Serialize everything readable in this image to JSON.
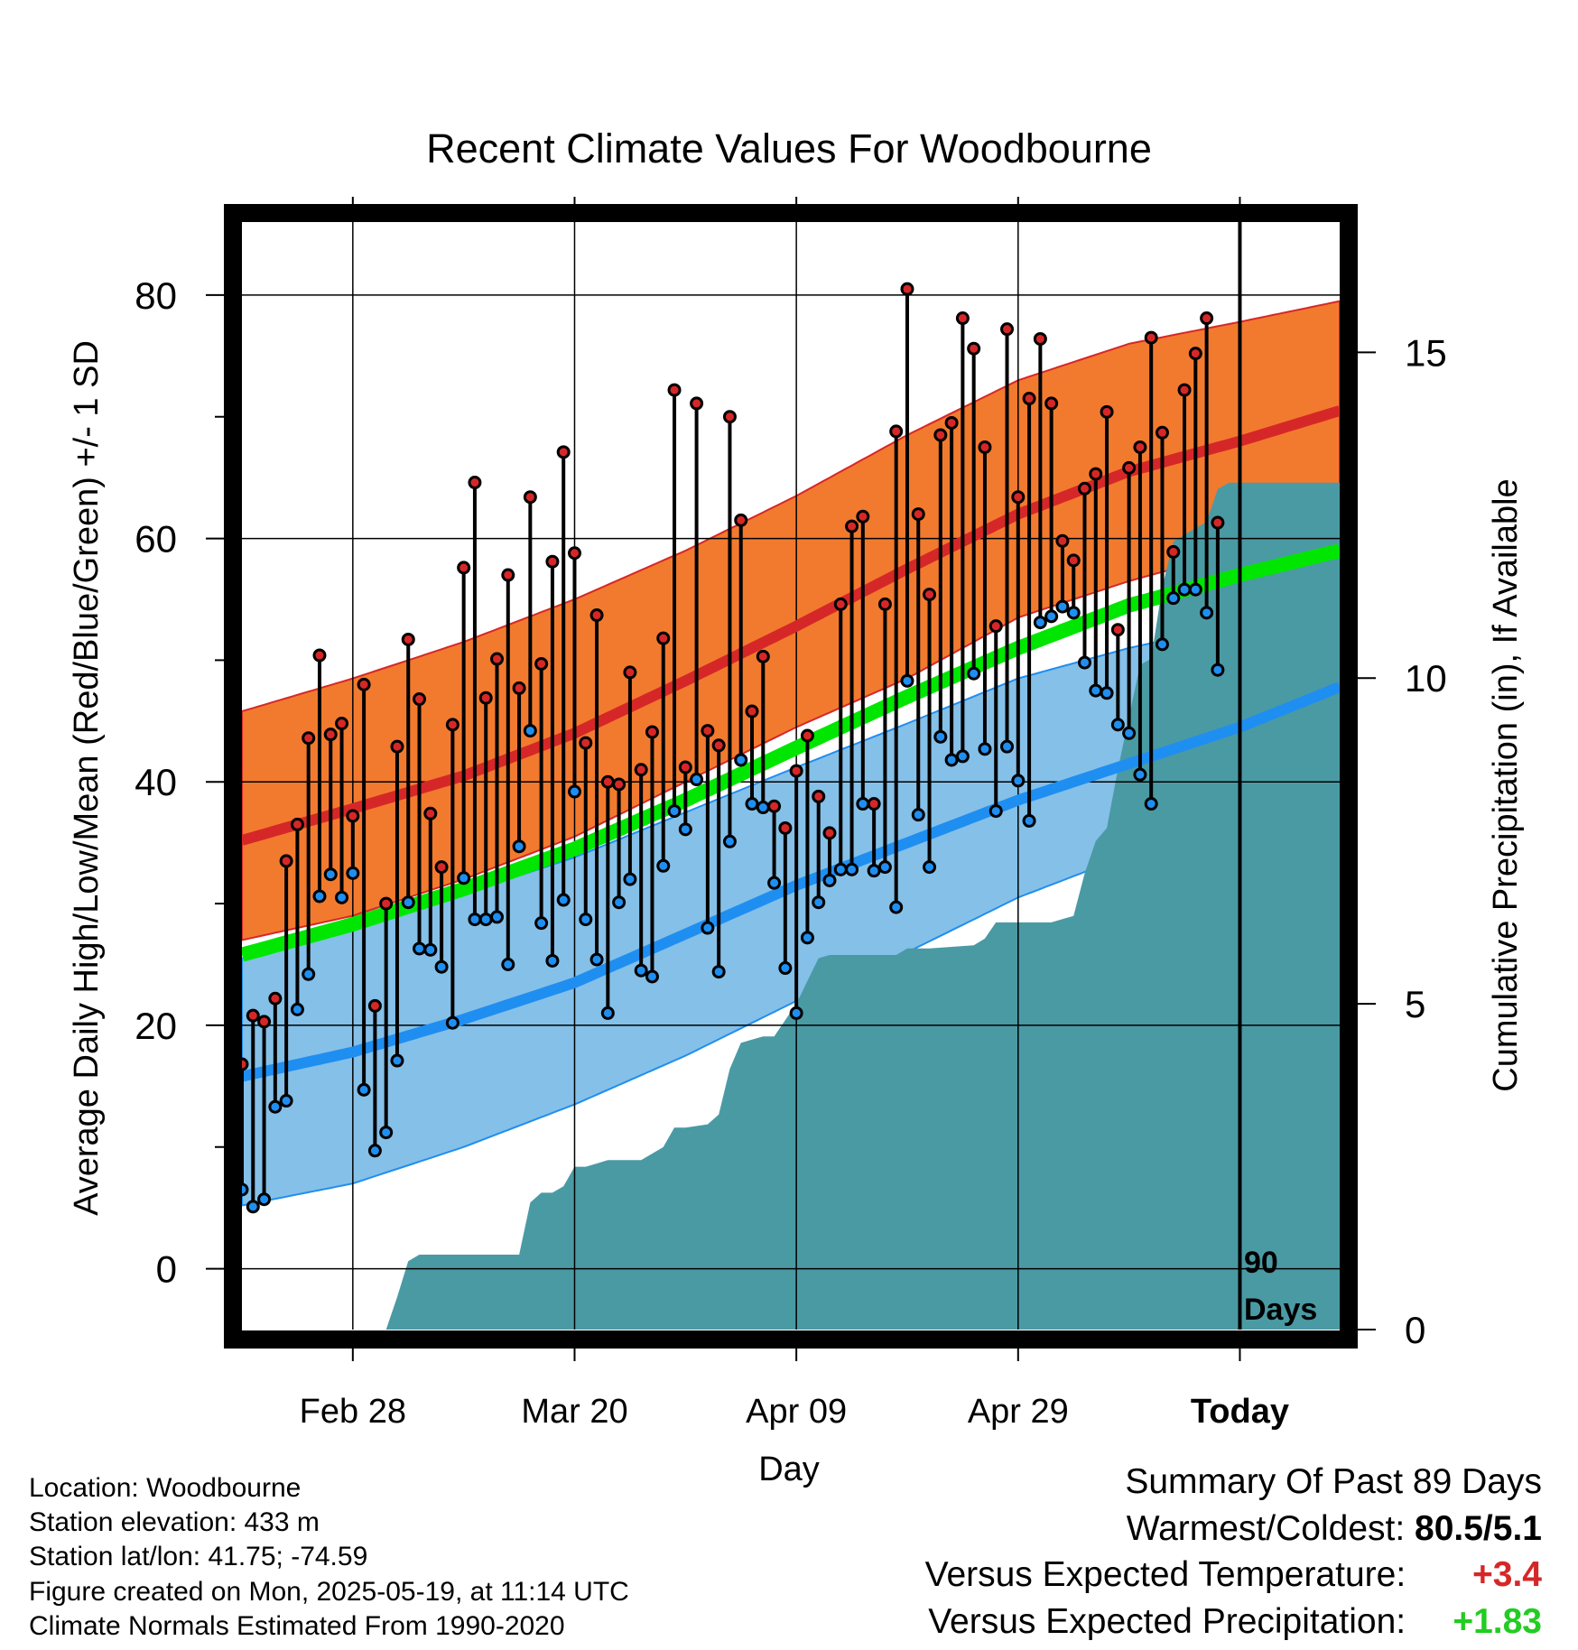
{
  "chart_data": {
    "type": "line",
    "title": "Recent Climate Values For Woodbourne",
    "xlabel": "Day",
    "ylabel": "Average Daily High/Low/Mean (Red/Blue/Green) +/- 1 SD",
    "y2label": "Cumulative Precipitation (in), If Available",
    "ylim": [
      -5,
      86
    ],
    "y2lim": [
      0,
      17
    ],
    "x_range_days": [
      0,
      99
    ],
    "today_index": 89,
    "today_marker_label_line1": "90",
    "today_marker_label_line2": "Days",
    "x_ticks": [
      {
        "day": 10,
        "label": "Feb 28"
      },
      {
        "day": 30,
        "label": "Mar 20"
      },
      {
        "day": 50,
        "label": "Apr 09"
      },
      {
        "day": 70,
        "label": "Apr 29"
      },
      {
        "day": 90,
        "label": "Today"
      }
    ],
    "y_ticks": [
      0,
      20,
      40,
      60,
      80
    ],
    "y_minor_ticks": [
      10,
      30,
      50,
      70
    ],
    "y2_ticks": [
      0,
      5,
      10,
      15
    ],
    "normal_days": [
      0,
      10,
      20,
      30,
      40,
      50,
      60,
      70,
      80,
      90,
      99
    ],
    "normal_high": [
      35.2,
      37.8,
      40.5,
      44.0,
      48.3,
      52.8,
      57.5,
      62.0,
      65.5,
      68.0,
      70.5
    ],
    "normal_high_upper": [
      45.8,
      48.5,
      51.5,
      55.0,
      59.0,
      63.5,
      68.5,
      73.0,
      76.0,
      77.8,
      79.5
    ],
    "normal_high_lower": [
      27.0,
      29.0,
      32.0,
      35.5,
      40.0,
      44.5,
      48.5,
      53.5,
      56.5,
      59.0,
      62.0
    ],
    "normal_mean": [
      25.8,
      28.3,
      31.2,
      34.5,
      38.5,
      42.8,
      47.0,
      51.0,
      54.5,
      57.0,
      59.0
    ],
    "normal_low": [
      15.8,
      17.8,
      20.5,
      23.5,
      27.5,
      31.5,
      35.0,
      38.5,
      41.5,
      44.5,
      47.8
    ],
    "normal_low_upper": [
      25.5,
      28.0,
      30.8,
      33.8,
      37.5,
      41.2,
      44.8,
      48.5,
      51.0,
      53.0,
      55.0
    ],
    "normal_low_lower": [
      5.2,
      7.0,
      10.0,
      13.5,
      17.5,
      22.0,
      26.0,
      30.5,
      34.0,
      37.0,
      41.0
    ],
    "daily_high": [
      16.8,
      20.8,
      20.3,
      22.2,
      33.5,
      36.5,
      43.6,
      50.4,
      43.9,
      44.8,
      37.2,
      48.0,
      21.6,
      30.0,
      42.9,
      51.7,
      46.8,
      37.4,
      33.0,
      44.7,
      57.6,
      64.6,
      46.9,
      50.1,
      57.0,
      47.7,
      63.4,
      49.7,
      58.1,
      67.1,
      58.8,
      43.2,
      53.7,
      40.0,
      39.8,
      49.0,
      41.0,
      44.1,
      51.8,
      72.2,
      41.2,
      71.1,
      44.2,
      43.0,
      70.0,
      61.5,
      45.8,
      50.3,
      38.0,
      36.2,
      40.9,
      43.8,
      38.8,
      35.8,
      54.6,
      61.0,
      61.8,
      38.2,
      54.6,
      68.8,
      80.5,
      62.0,
      55.4,
      68.5,
      69.5,
      78.1,
      75.6,
      67.5,
      52.8,
      77.2,
      63.4,
      71.5,
      76.4,
      71.1,
      59.8,
      58.2,
      64.1,
      65.3,
      70.4,
      52.5,
      65.8,
      67.5,
      76.5,
      68.7,
      58.9,
      72.2,
      75.2,
      78.1,
      61.3
    ],
    "daily_low": [
      6.5,
      5.1,
      5.7,
      13.3,
      13.8,
      21.3,
      24.2,
      30.6,
      32.4,
      30.5,
      32.5,
      14.7,
      9.7,
      11.2,
      17.1,
      30.1,
      26.3,
      26.2,
      24.8,
      20.2,
      32.1,
      28.7,
      28.7,
      28.9,
      25.0,
      34.7,
      44.2,
      28.4,
      25.3,
      30.3,
      39.2,
      28.7,
      25.4,
      21.0,
      30.1,
      32.0,
      24.5,
      24.0,
      33.1,
      37.6,
      36.1,
      40.2,
      28.0,
      24.4,
      35.1,
      41.8,
      38.2,
      37.9,
      31.7,
      24.7,
      21.0,
      27.2,
      30.1,
      31.9,
      32.8,
      32.8,
      38.2,
      32.7,
      33.0,
      29.7,
      48.3,
      37.3,
      33.0,
      43.7,
      41.8,
      42.1,
      48.9,
      42.7,
      37.6,
      42.9,
      40.1,
      36.8,
      53.1,
      53.6,
      54.4,
      53.9,
      49.8,
      47.5,
      47.3,
      44.7,
      44.0,
      40.6,
      38.2,
      51.3,
      55.1,
      55.8,
      55.8,
      53.9,
      49.2
    ],
    "precip_cumulative_days": [
      0,
      13,
      14,
      15,
      16,
      25,
      26,
      27,
      28,
      29,
      30,
      31,
      32,
      33,
      36,
      38,
      39,
      40,
      42,
      43,
      44,
      45,
      46,
      47,
      48,
      50,
      52,
      53,
      54,
      59,
      60,
      61,
      62,
      66,
      67,
      68,
      72,
      73,
      74,
      75,
      76,
      77,
      78,
      79,
      80,
      81,
      82,
      83,
      84,
      85,
      86,
      87,
      88,
      89,
      99
    ],
    "precip_cumulative_values": [
      0,
      0,
      0.5,
      1.05,
      1.15,
      1.15,
      1.95,
      2.1,
      2.1,
      2.2,
      2.5,
      2.5,
      2.55,
      2.6,
      2.6,
      2.8,
      3.1,
      3.1,
      3.15,
      3.3,
      4.0,
      4.4,
      4.45,
      4.5,
      4.5,
      5.0,
      5.7,
      5.75,
      5.75,
      5.75,
      5.85,
      5.85,
      5.85,
      5.9,
      6.0,
      6.25,
      6.25,
      6.25,
      6.3,
      6.35,
      7.0,
      7.5,
      7.7,
      8.6,
      9.4,
      10.2,
      10.3,
      11.4,
      12.1,
      12.2,
      12.3,
      12.4,
      12.9,
      13.0,
      13.0
    ]
  },
  "info": {
    "location": "Location: Woodbourne",
    "elevation": "Station elevation: 433 m",
    "latlon": "Station lat/lon: 41.75; -74.59",
    "created": "Figure created on Mon, 2025-05-19, at 11:14 UTC",
    "normals": "Climate Normals Estimated From 1990-2020"
  },
  "summary": {
    "title": "Summary Of Past 89 Days",
    "warmest_label": "Warmest/Coldest:",
    "warmest_value": "80.5/5.1",
    "temp_label": "Versus Expected Temperature:",
    "temp_value": "+3.4",
    "precip_label": "Versus Expected Precipitation:",
    "precip_value": "+1.83"
  },
  "colors": {
    "high_band": "#f27a2e",
    "high_line": "#d62728",
    "low_band": "#85c0e8",
    "low_line": "#1f8ef1",
    "mean_line": "#00e600",
    "precip_fill": "#4a9aa4",
    "high_dot": "#d62728",
    "low_dot": "#1f8ef1"
  }
}
